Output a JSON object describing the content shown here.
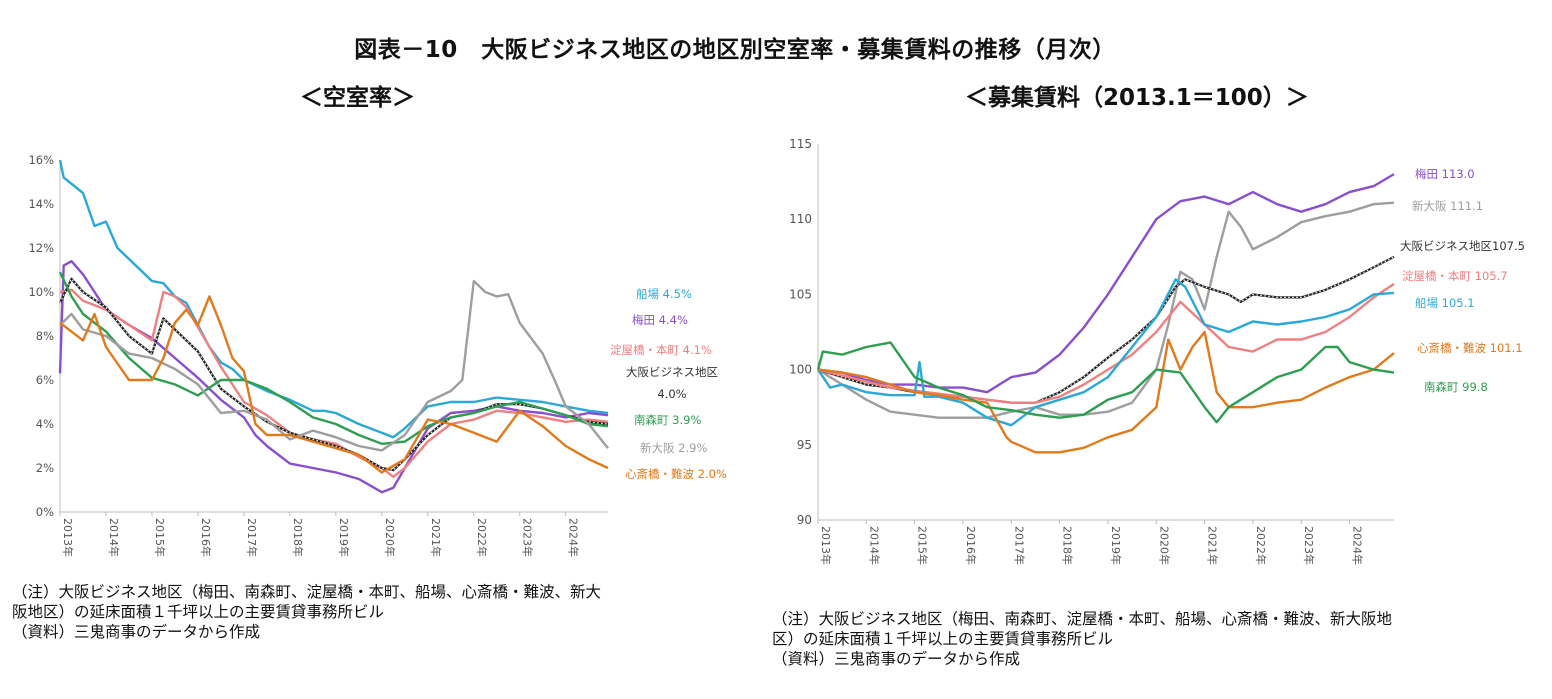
{
  "title": "図表－10　大阪ビジネス地区の地区別空室率・募集賃料の推移（月次）",
  "subtitle_left": "＜空室率＞",
  "subtitle_right": "＜募集賃料（2013.1＝100）＞",
  "notes_left": {
    "line1": "（注）大阪ビジネス地区（梅田、南森町、淀屋橋・本町、船場、心斎橋・難波、新大",
    "line2": "阪地区）の延床面積１千坪以上の主要賃貸事務所ビル",
    "line3": "（資料）三鬼商事のデータから作成"
  },
  "notes_right": {
    "line1": "（注）大阪ビジネス地区（梅田、南森町、淀屋橋・本町、船場、心斎橋・難波、新大阪地",
    "line2": "区）の延床面積１千坪以上の主要賃貸事務所ビル",
    "line3": "（資料）三鬼商事のデータから作成"
  },
  "chart_data": [
    {
      "type": "line",
      "title": "＜空室率＞",
      "ylim": [
        0,
        16
      ],
      "yticks": [
        "0%",
        "2%",
        "4%",
        "6%",
        "8%",
        "10%",
        "12%",
        "14%",
        "16%"
      ],
      "xlim": [
        2013.0,
        2024.92
      ],
      "xticks": [
        "2013年",
        "2014年",
        "2015年",
        "2016年",
        "2017年",
        "2018年",
        "2019年",
        "2020年",
        "2021年",
        "2022年",
        "2023年",
        "2024年"
      ],
      "series": [
        {
          "name": "船場",
          "color": "#2aa8d8",
          "label": "船場 4.5%",
          "x": [
            2013.0,
            2013.08,
            2013.5,
            2013.75,
            2014.0,
            2014.25,
            2014.5,
            2014.75,
            2015.0,
            2015.25,
            2015.5,
            2015.75,
            2016.0,
            2016.25,
            2016.5,
            2016.75,
            2017.0,
            2017.5,
            2018.0,
            2018.5,
            2018.75,
            2019.0,
            2019.5,
            2020.0,
            2020.25,
            2020.5,
            2021.0,
            2021.5,
            2022.0,
            2022.5,
            2023.0,
            2023.5,
            2024.0,
            2024.5,
            2024.92
          ],
          "values": [
            16.0,
            15.2,
            14.5,
            13.0,
            13.2,
            12.0,
            11.5,
            11.0,
            10.5,
            10.4,
            9.8,
            9.5,
            8.5,
            7.5,
            6.8,
            6.5,
            6.0,
            5.5,
            5.1,
            4.6,
            4.6,
            4.5,
            4.0,
            3.6,
            3.4,
            3.8,
            4.8,
            5.0,
            5.0,
            5.2,
            5.1,
            5.0,
            4.8,
            4.6,
            4.5
          ]
        },
        {
          "name": "梅田",
          "color": "#8a4fcf",
          "label": "梅田 4.4%",
          "x": [
            2013.0,
            2013.08,
            2013.25,
            2013.5,
            2013.75,
            2014.0,
            2014.5,
            2015.0,
            2015.5,
            2016.0,
            2016.5,
            2017.0,
            2017.25,
            2017.5,
            2018.0,
            2018.5,
            2019.0,
            2019.5,
            2019.75,
            2020.0,
            2020.25,
            2020.5,
            2021.0,
            2021.5,
            2022.0,
            2022.5,
            2023.0,
            2023.5,
            2024.0,
            2024.5,
            2024.92
          ],
          "values": [
            6.3,
            11.2,
            11.4,
            10.8,
            10.0,
            9.2,
            8.5,
            7.9,
            7.0,
            6.1,
            5.1,
            4.3,
            3.5,
            3.0,
            2.2,
            2.0,
            1.8,
            1.5,
            1.2,
            0.9,
            1.1,
            2.0,
            3.8,
            4.5,
            4.6,
            4.8,
            4.6,
            4.5,
            4.3,
            4.5,
            4.4
          ]
        },
        {
          "name": "淀屋橋・本町",
          "color": "#f08080",
          "label": "淀屋橋・本町 4.1%",
          "x": [
            2013.0,
            2013.25,
            2013.5,
            2014.0,
            2014.5,
            2015.0,
            2015.25,
            2015.5,
            2015.75,
            2016.0,
            2016.5,
            2017.0,
            2017.5,
            2018.0,
            2018.5,
            2019.0,
            2019.5,
            2020.0,
            2020.25,
            2020.5,
            2021.0,
            2021.5,
            2022.0,
            2022.5,
            2023.0,
            2023.5,
            2024.0,
            2024.5,
            2024.92
          ],
          "values": [
            10.0,
            10.1,
            9.6,
            9.2,
            8.5,
            7.8,
            10.0,
            9.8,
            9.3,
            8.4,
            6.6,
            5.0,
            4.4,
            3.6,
            3.3,
            3.1,
            2.5,
            2.0,
            1.6,
            2.0,
            3.2,
            4.0,
            4.2,
            4.6,
            4.5,
            4.3,
            4.1,
            4.2,
            4.1
          ]
        },
        {
          "name": "大阪ビジネス地区",
          "color": "#222222",
          "dotted": true,
          "label1": "大阪ビジネス地区",
          "label2": "4.0%",
          "x": [
            2013.0,
            2013.25,
            2013.5,
            2014.0,
            2014.5,
            2015.0,
            2015.25,
            2015.5,
            2016.0,
            2016.5,
            2017.0,
            2017.5,
            2018.0,
            2018.5,
            2019.0,
            2019.5,
            2020.0,
            2020.25,
            2020.5,
            2021.0,
            2021.5,
            2022.0,
            2022.5,
            2023.0,
            2023.5,
            2024.0,
            2024.5,
            2024.92
          ],
          "values": [
            9.5,
            10.6,
            10.0,
            9.3,
            8.0,
            7.2,
            8.8,
            8.3,
            7.3,
            5.6,
            4.8,
            4.1,
            3.6,
            3.3,
            3.0,
            2.6,
            2.0,
            1.9,
            2.4,
            3.5,
            4.3,
            4.5,
            4.9,
            4.9,
            4.7,
            4.4,
            4.1,
            4.0
          ]
        },
        {
          "name": "南森町",
          "color": "#2e9e50",
          "label": "南森町 3.9%",
          "x": [
            2013.0,
            2013.25,
            2013.5,
            2014.0,
            2014.5,
            2015.0,
            2015.5,
            2016.0,
            2016.5,
            2017.0,
            2017.5,
            2018.0,
            2018.5,
            2019.0,
            2019.5,
            2020.0,
            2020.5,
            2021.0,
            2021.5,
            2022.0,
            2022.5,
            2023.0,
            2023.5,
            2024.0,
            2024.5,
            2024.92
          ],
          "values": [
            10.9,
            9.8,
            9.0,
            8.2,
            7.0,
            6.1,
            5.8,
            5.3,
            6.0,
            6.0,
            5.6,
            5.0,
            4.3,
            4.0,
            3.5,
            3.1,
            3.2,
            3.9,
            4.3,
            4.5,
            4.8,
            5.0,
            4.7,
            4.4,
            4.0,
            3.9
          ]
        },
        {
          "name": "新大阪",
          "color": "#9e9e9e",
          "label": "新大阪 2.9%",
          "x": [
            2013.0,
            2013.25,
            2013.5,
            2014.0,
            2014.5,
            2015.0,
            2015.5,
            2016.0,
            2016.5,
            2017.0,
            2017.5,
            2018.0,
            2018.5,
            2019.0,
            2019.5,
            2020.0,
            2020.5,
            2021.0,
            2021.5,
            2021.75,
            2022.0,
            2022.25,
            2022.5,
            2022.75,
            2023.0,
            2023.5,
            2023.8,
            2024.0,
            2024.5,
            2024.92
          ],
          "values": [
            8.5,
            9.0,
            8.3,
            8.0,
            7.2,
            7.0,
            6.5,
            5.8,
            4.5,
            4.6,
            4.2,
            3.3,
            3.7,
            3.4,
            3.0,
            2.8,
            3.5,
            5.0,
            5.5,
            6.0,
            10.5,
            10.0,
            9.8,
            9.9,
            8.6,
            7.2,
            5.8,
            4.8,
            4.0,
            2.9
          ]
        },
        {
          "name": "心斎橋・難波",
          "color": "#e07a1c",
          "label": "心斎橋・難波 2.0%",
          "x": [
            2013.0,
            2013.25,
            2013.5,
            2013.75,
            2014.0,
            2014.5,
            2015.0,
            2015.25,
            2015.5,
            2015.75,
            2016.0,
            2016.25,
            2016.5,
            2016.75,
            2017.0,
            2017.25,
            2017.5,
            2018.0,
            2018.5,
            2019.0,
            2019.5,
            2020.0,
            2020.5,
            2021.0,
            2021.5,
            2022.0,
            2022.5,
            2023.0,
            2023.5,
            2024.0,
            2024.5,
            2024.92
          ],
          "values": [
            8.6,
            8.2,
            7.8,
            9.0,
            7.5,
            6.0,
            6.0,
            7.0,
            8.6,
            9.2,
            8.5,
            9.8,
            8.5,
            7.0,
            6.4,
            4.0,
            3.5,
            3.5,
            3.2,
            2.9,
            2.6,
            1.8,
            2.4,
            4.2,
            4.0,
            3.6,
            3.2,
            4.6,
            3.9,
            3.0,
            2.4,
            2.0
          ]
        }
      ]
    },
    {
      "type": "line",
      "title": "＜募集賃料（2013.1＝100）＞",
      "ylim": [
        90,
        115
      ],
      "yticks": [
        "90",
        "95",
        "100",
        "105",
        "110",
        "115"
      ],
      "xlim": [
        2013.0,
        2024.92
      ],
      "xticks": [
        "2013年",
        "2014年",
        "2015年",
        "2016年",
        "2017年",
        "2018年",
        "2019年",
        "2020年",
        "2021年",
        "2022年",
        "2023年",
        "2024年"
      ],
      "series": [
        {
          "name": "梅田",
          "color": "#8a4fcf",
          "label": "梅田 113.0",
          "x": [
            2013.0,
            2013.5,
            2014.0,
            2014.5,
            2015.0,
            2015.5,
            2016.0,
            2016.5,
            2017.0,
            2017.5,
            2018.0,
            2018.5,
            2019.0,
            2019.5,
            2020.0,
            2020.5,
            2021.0,
            2021.5,
            2022.0,
            2022.5,
            2023.0,
            2023.5,
            2024.0,
            2024.5,
            2024.92
          ],
          "values": [
            100.0,
            99.8,
            99.3,
            99.0,
            99.0,
            98.8,
            98.8,
            98.5,
            99.5,
            99.8,
            101.0,
            102.8,
            105.0,
            107.5,
            110.0,
            111.2,
            111.5,
            111.0,
            111.8,
            111.0,
            110.5,
            111.0,
            111.8,
            112.2,
            113.0
          ]
        },
        {
          "name": "新大阪",
          "color": "#9e9e9e",
          "label": "新大阪 111.1",
          "x": [
            2013.0,
            2013.5,
            2014.0,
            2014.5,
            2015.0,
            2015.5,
            2016.0,
            2016.5,
            2017.0,
            2017.5,
            2018.0,
            2018.5,
            2019.0,
            2019.5,
            2020.0,
            2020.25,
            2020.5,
            2020.75,
            2021.0,
            2021.25,
            2021.5,
            2021.75,
            2022.0,
            2022.5,
            2023.0,
            2023.5,
            2024.0,
            2024.5,
            2024.92
          ],
          "values": [
            100.0,
            99.0,
            98.0,
            97.2,
            97.0,
            96.8,
            96.8,
            96.8,
            97.2,
            97.5,
            97.0,
            97.0,
            97.2,
            97.8,
            100.0,
            103.0,
            106.5,
            106.0,
            104.0,
            107.5,
            110.5,
            109.5,
            108.0,
            108.8,
            109.8,
            110.2,
            110.5,
            111.0,
            111.1
          ]
        },
        {
          "name": "大阪ビジネス地区",
          "color": "#222222",
          "dotted": true,
          "label": "大阪ビジネス地区107.5",
          "x": [
            2013.0,
            2013.5,
            2014.0,
            2014.5,
            2015.0,
            2015.5,
            2016.0,
            2016.5,
            2017.0,
            2017.5,
            2018.0,
            2018.5,
            2019.0,
            2019.5,
            2020.0,
            2020.4,
            2020.6,
            2021.0,
            2021.5,
            2021.75,
            2022.0,
            2022.5,
            2023.0,
            2023.5,
            2024.0,
            2024.5,
            2024.92
          ],
          "values": [
            100.0,
            99.5,
            99.0,
            98.8,
            98.5,
            98.3,
            98.2,
            98.0,
            97.8,
            97.8,
            98.5,
            99.5,
            100.8,
            102.0,
            103.5,
            105.5,
            106.0,
            105.5,
            105.0,
            104.5,
            105.0,
            104.8,
            104.8,
            105.3,
            106.0,
            106.8,
            107.5
          ]
        },
        {
          "name": "淀屋橋・本町",
          "color": "#f08080",
          "label": "淀屋橋・本町 105.7",
          "x": [
            2013.0,
            2013.5,
            2014.0,
            2014.5,
            2015.0,
            2015.5,
            2016.0,
            2016.5,
            2017.0,
            2017.5,
            2018.0,
            2018.5,
            2019.0,
            2019.5,
            2020.0,
            2020.5,
            2021.0,
            2021.5,
            2022.0,
            2022.5,
            2023.0,
            2023.5,
            2024.0,
            2024.5,
            2024.92
          ],
          "values": [
            100.0,
            99.6,
            99.2,
            98.8,
            98.6,
            98.4,
            98.2,
            98.0,
            97.8,
            97.8,
            98.2,
            99.0,
            100.0,
            101.0,
            102.5,
            104.5,
            103.0,
            101.5,
            101.2,
            102.0,
            102.0,
            102.5,
            103.5,
            104.8,
            105.7
          ]
        },
        {
          "name": "船場",
          "color": "#2aa8d8",
          "label": "船場 105.1",
          "x": [
            2013.0,
            2013.25,
            2013.5,
            2014.0,
            2014.5,
            2015.0,
            2015.1,
            2015.2,
            2015.5,
            2016.0,
            2016.5,
            2017.0,
            2017.5,
            2018.0,
            2018.5,
            2019.0,
            2019.5,
            2020.0,
            2020.4,
            2020.6,
            2021.0,
            2021.5,
            2022.0,
            2022.5,
            2023.0,
            2023.5,
            2024.0,
            2024.5,
            2024.92
          ],
          "values": [
            100.0,
            98.8,
            99.0,
            98.5,
            98.3,
            98.3,
            100.5,
            98.2,
            98.2,
            97.8,
            96.8,
            96.3,
            97.5,
            98.0,
            98.5,
            99.5,
            101.5,
            103.5,
            106.0,
            105.5,
            103.0,
            102.5,
            103.2,
            103.0,
            103.2,
            103.5,
            104.0,
            105.0,
            105.1
          ]
        },
        {
          "name": "心斎橋・難波",
          "color": "#e07a1c",
          "label": "心斎橋・難波 101.1",
          "x": [
            2013.0,
            2013.5,
            2014.0,
            2014.5,
            2015.0,
            2015.5,
            2016.0,
            2016.5,
            2016.9,
            2017.0,
            2017.5,
            2018.0,
            2018.5,
            2019.0,
            2019.5,
            2020.0,
            2020.25,
            2020.5,
            2020.75,
            2021.0,
            2021.25,
            2021.5,
            2022.0,
            2022.5,
            2023.0,
            2023.5,
            2024.0,
            2024.5,
            2024.92
          ],
          "values": [
            100.0,
            99.8,
            99.5,
            99.0,
            98.5,
            98.3,
            98.0,
            97.8,
            95.5,
            95.2,
            94.5,
            94.5,
            94.8,
            95.5,
            96.0,
            97.5,
            102.0,
            100.0,
            101.5,
            102.5,
            98.5,
            97.5,
            97.5,
            97.8,
            98.0,
            98.8,
            99.5,
            100.0,
            101.1
          ]
        },
        {
          "name": "南森町",
          "color": "#2e9e50",
          "label": "南森町 99.8",
          "x": [
            2013.0,
            2013.1,
            2013.5,
            2014.0,
            2014.5,
            2015.0,
            2015.5,
            2016.0,
            2016.5,
            2017.0,
            2017.5,
            2018.0,
            2018.5,
            2019.0,
            2019.5,
            2020.0,
            2020.5,
            2021.0,
            2021.25,
            2021.5,
            2022.0,
            2022.5,
            2023.0,
            2023.5,
            2023.75,
            2024.0,
            2024.5,
            2024.92
          ],
          "values": [
            100.0,
            101.2,
            101.0,
            101.5,
            101.8,
            99.5,
            98.8,
            98.3,
            97.5,
            97.3,
            97.0,
            96.8,
            97.0,
            98.0,
            98.5,
            100.0,
            99.8,
            97.5,
            96.5,
            97.5,
            98.5,
            99.5,
            100.0,
            101.5,
            101.5,
            100.5,
            100.0,
            99.8
          ]
        }
      ]
    }
  ]
}
